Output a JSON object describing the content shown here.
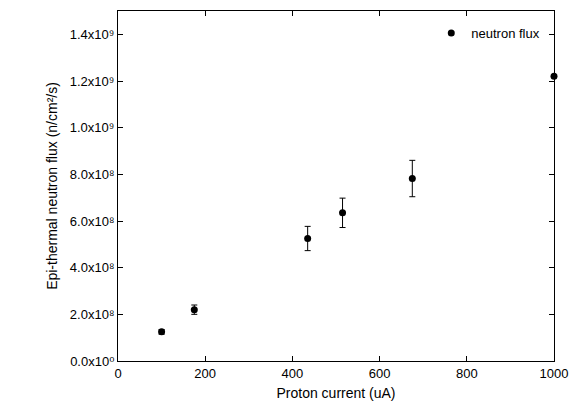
{
  "chart_data": {
    "type": "scatter",
    "x_label": "Proton current (uA)",
    "y_label": "Epi-thermal neutron flux (n/cm²/s)",
    "series": [
      {
        "name": "neutron flux",
        "color": "#000000",
        "marker": "circle",
        "x": [
          100,
          175,
          435,
          515,
          675,
          1000
        ],
        "values": [
          125000000,
          220000000,
          525000000,
          635000000,
          782000000,
          1220000000
        ],
        "errors": [
          10000000,
          20000000,
          52000000,
          63000000,
          78000000,
          0
        ]
      }
    ],
    "xlim": [
      0,
      1000
    ],
    "xticks": [
      0,
      200,
      400,
      600,
      800,
      1000
    ],
    "ylim": [
      0,
      1500000000
    ],
    "yticks": [
      {
        "value": 0,
        "label": "0.0x10⁰"
      },
      {
        "value": 200000000,
        "label": "2.0x10⁸"
      },
      {
        "value": 400000000,
        "label": "4.0x10⁸"
      },
      {
        "value": 600000000,
        "label": "6.0x10⁸"
      },
      {
        "value": 800000000,
        "label": "8.0x10⁸"
      },
      {
        "value": 1000000000,
        "label": "1.0x10⁹"
      },
      {
        "value": 1200000000,
        "label": "1.2x10⁹"
      },
      {
        "value": 1400000000,
        "label": "1.4x10⁹"
      }
    ],
    "grid": false,
    "legend": "upper right"
  }
}
